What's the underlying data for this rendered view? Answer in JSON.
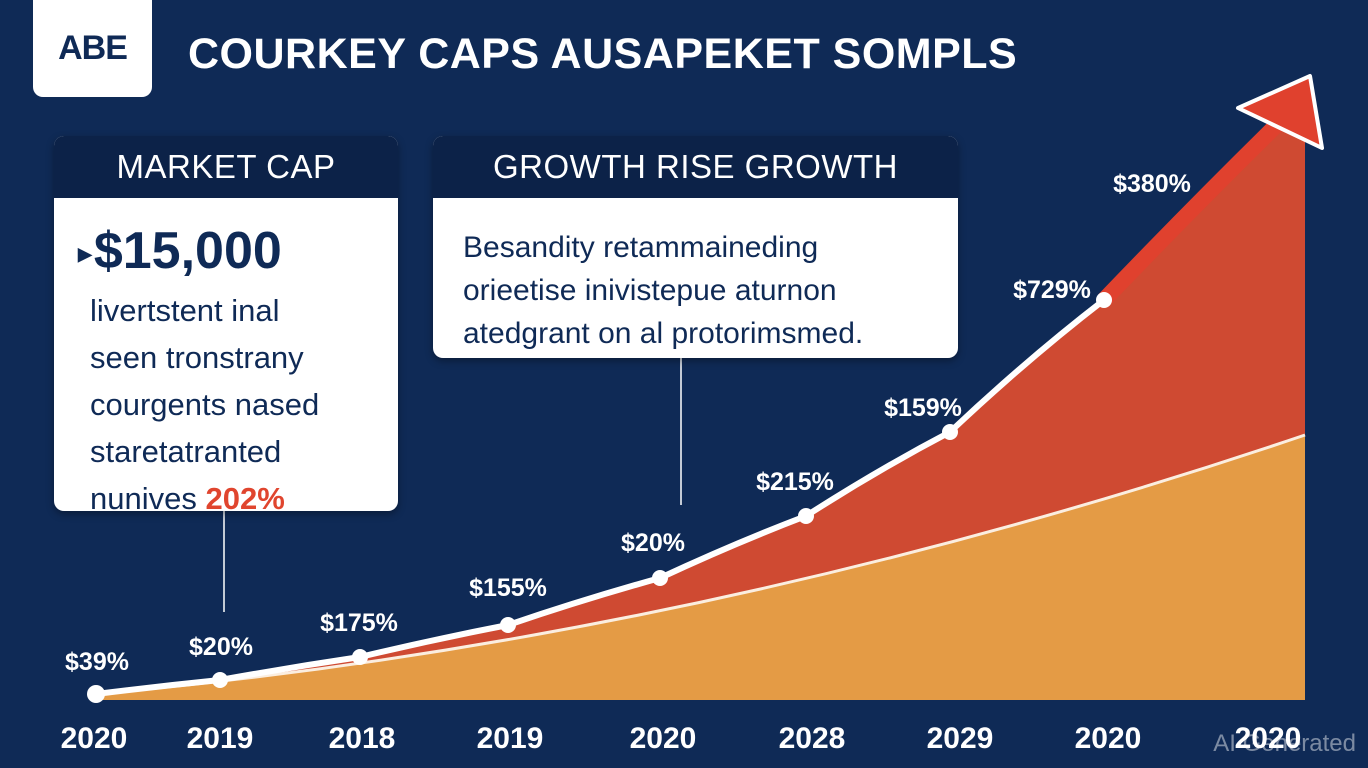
{
  "logo": "ABE",
  "title": "COURKEY CAPS AUSAPEKET SOMPLS",
  "card_market": {
    "heading": "MARKET CAP",
    "value": "$15,000",
    "lines": [
      "livertstent inal",
      "seen tronstrany",
      "courgents nased",
      "staretatranted"
    ],
    "last_line": "nunives",
    "highlight": "202%"
  },
  "card_growth": {
    "heading": "GROWTH RISE GROWTH",
    "lines": [
      "Besandity retammaineding",
      "orieetise inivistepue aturnon",
      "atedgrant on al protorimsmed."
    ]
  },
  "watermark": "AI Generated",
  "colors": {
    "background": "#0f2a56",
    "upper_area": "#cf4a32",
    "lower_area": "#e49b45",
    "arrow": "#e0412e",
    "line": "#ffffff"
  },
  "chart_data": {
    "type": "area",
    "title": "COURKEY CAPS AUSAPEKET SOMPLS",
    "categories": [
      "2020",
      "2019",
      "2018",
      "2019",
      "2020",
      "2028",
      "2029",
      "2020",
      "2020"
    ],
    "point_labels": [
      "$39%",
      "$20%",
      "$175%",
      "$155%",
      "$20%",
      "$215%",
      "$159%",
      "$729%",
      "$380%"
    ],
    "series": [
      {
        "style": "white line with markers, red area, ending in arrow"
      },
      {
        "style": "orange area below"
      }
    ],
    "grid": false,
    "legend": "none"
  }
}
